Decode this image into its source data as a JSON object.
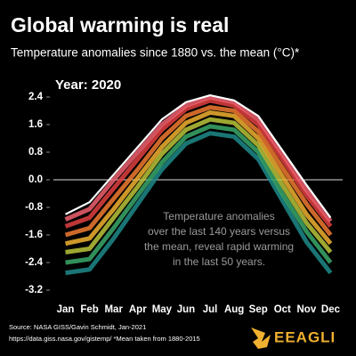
{
  "chart_data": {
    "type": "line",
    "title": "Global warming is real",
    "subtitle": "Temperature anomalies since 1880 vs. the mean (°C)*",
    "annotation_year": "Year: 2020",
    "annotation": [
      "Temperature anomalies",
      "over the last 140 years versus",
      "the mean, reveal rapid warming",
      "in the last 50 years."
    ],
    "source": [
      "Source: NASA GISS/Gavin Schmidt, Jan-2021",
      "https://data.giss.nasa.gov/gistemp/ *Mean taken from 1880-2015"
    ],
    "brand": "EEAGLI",
    "categories": [
      "Jan",
      "Feb",
      "Mar",
      "Apr",
      "May",
      "Jun",
      "Jul",
      "Aug",
      "Sep",
      "Oct",
      "Nov",
      "Dec"
    ],
    "series": [
      {
        "color": "#1f8a8a",
        "values": [
          -2.7,
          -2.6,
          -1.7,
          -0.7,
          0.3,
          1.05,
          1.35,
          1.25,
          0.6,
          -0.6,
          -1.8,
          -2.7
        ]
      },
      {
        "color": "#3aa86a",
        "values": [
          -2.4,
          -2.3,
          -1.4,
          -0.45,
          0.5,
          1.25,
          1.55,
          1.45,
          0.8,
          -0.4,
          -1.5,
          -2.4
        ]
      },
      {
        "color": "#b8c43a",
        "values": [
          -2.1,
          -2.0,
          -1.1,
          -0.2,
          0.75,
          1.45,
          1.75,
          1.65,
          1.0,
          -0.15,
          -1.25,
          -2.1
        ]
      },
      {
        "color": "#f0b030",
        "values": [
          -1.85,
          -1.7,
          -0.85,
          0.05,
          0.95,
          1.65,
          1.95,
          1.85,
          1.2,
          0.1,
          -1.0,
          -1.85
        ]
      },
      {
        "color": "#f07a30",
        "values": [
          -1.6,
          -1.4,
          -0.55,
          0.3,
          1.2,
          1.85,
          2.1,
          2.0,
          1.4,
          0.35,
          -0.7,
          -1.6
        ]
      },
      {
        "color": "#e04040",
        "values": [
          -1.35,
          -1.1,
          -0.25,
          0.6,
          1.45,
          2.05,
          2.3,
          2.15,
          1.6,
          0.6,
          -0.45,
          -1.35
        ]
      },
      {
        "color": "#f06070",
        "values": [
          -1.15,
          -0.85,
          0.0,
          0.8,
          1.6,
          2.15,
          2.4,
          2.25,
          1.75,
          0.75,
          -0.3,
          -1.2
        ]
      },
      {
        "color": "#ffffff",
        "values": [
          -1.0,
          -0.65,
          0.15,
          0.95,
          1.75,
          2.25,
          2.45,
          2.3,
          1.85,
          0.85,
          -0.15,
          -1.1
        ]
      }
    ],
    "ylim": [
      -3.2,
      3.2
    ],
    "yticks": [
      2.4,
      1.6,
      0.8,
      {
        "value": 0,
        "label": "0.0"
      },
      -0.8,
      -1.6,
      -2.4,
      -3.2
    ]
  }
}
